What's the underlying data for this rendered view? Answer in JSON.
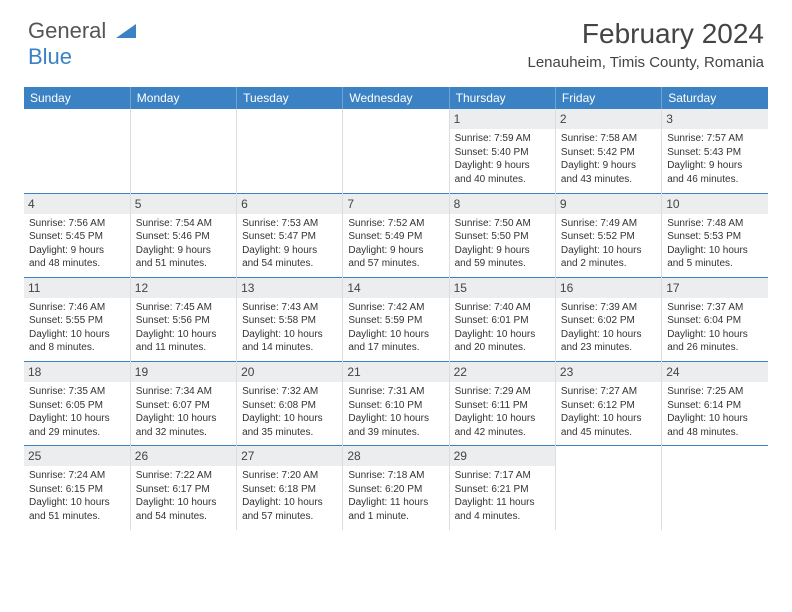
{
  "logo": {
    "line1": "General",
    "line2": "Blue"
  },
  "title": "February 2024",
  "location": "Lenauheim, Timis County, Romania",
  "colors": {
    "header_bg": "#3b82c4",
    "header_text": "#ffffff",
    "day_label_bg": "#ecedee",
    "cell_border": "#3b82c4"
  },
  "day_headers": [
    "Sunday",
    "Monday",
    "Tuesday",
    "Wednesday",
    "Thursday",
    "Friday",
    "Saturday"
  ],
  "weeks": [
    [
      null,
      null,
      null,
      null,
      {
        "n": "1",
        "sr": "Sunrise: 7:59 AM",
        "ss": "Sunset: 5:40 PM",
        "d1": "Daylight: 9 hours",
        "d2": "and 40 minutes."
      },
      {
        "n": "2",
        "sr": "Sunrise: 7:58 AM",
        "ss": "Sunset: 5:42 PM",
        "d1": "Daylight: 9 hours",
        "d2": "and 43 minutes."
      },
      {
        "n": "3",
        "sr": "Sunrise: 7:57 AM",
        "ss": "Sunset: 5:43 PM",
        "d1": "Daylight: 9 hours",
        "d2": "and 46 minutes."
      }
    ],
    [
      {
        "n": "4",
        "sr": "Sunrise: 7:56 AM",
        "ss": "Sunset: 5:45 PM",
        "d1": "Daylight: 9 hours",
        "d2": "and 48 minutes."
      },
      {
        "n": "5",
        "sr": "Sunrise: 7:54 AM",
        "ss": "Sunset: 5:46 PM",
        "d1": "Daylight: 9 hours",
        "d2": "and 51 minutes."
      },
      {
        "n": "6",
        "sr": "Sunrise: 7:53 AM",
        "ss": "Sunset: 5:47 PM",
        "d1": "Daylight: 9 hours",
        "d2": "and 54 minutes."
      },
      {
        "n": "7",
        "sr": "Sunrise: 7:52 AM",
        "ss": "Sunset: 5:49 PM",
        "d1": "Daylight: 9 hours",
        "d2": "and 57 minutes."
      },
      {
        "n": "8",
        "sr": "Sunrise: 7:50 AM",
        "ss": "Sunset: 5:50 PM",
        "d1": "Daylight: 9 hours",
        "d2": "and 59 minutes."
      },
      {
        "n": "9",
        "sr": "Sunrise: 7:49 AM",
        "ss": "Sunset: 5:52 PM",
        "d1": "Daylight: 10 hours",
        "d2": "and 2 minutes."
      },
      {
        "n": "10",
        "sr": "Sunrise: 7:48 AM",
        "ss": "Sunset: 5:53 PM",
        "d1": "Daylight: 10 hours",
        "d2": "and 5 minutes."
      }
    ],
    [
      {
        "n": "11",
        "sr": "Sunrise: 7:46 AM",
        "ss": "Sunset: 5:55 PM",
        "d1": "Daylight: 10 hours",
        "d2": "and 8 minutes."
      },
      {
        "n": "12",
        "sr": "Sunrise: 7:45 AM",
        "ss": "Sunset: 5:56 PM",
        "d1": "Daylight: 10 hours",
        "d2": "and 11 minutes."
      },
      {
        "n": "13",
        "sr": "Sunrise: 7:43 AM",
        "ss": "Sunset: 5:58 PM",
        "d1": "Daylight: 10 hours",
        "d2": "and 14 minutes."
      },
      {
        "n": "14",
        "sr": "Sunrise: 7:42 AM",
        "ss": "Sunset: 5:59 PM",
        "d1": "Daylight: 10 hours",
        "d2": "and 17 minutes."
      },
      {
        "n": "15",
        "sr": "Sunrise: 7:40 AM",
        "ss": "Sunset: 6:01 PM",
        "d1": "Daylight: 10 hours",
        "d2": "and 20 minutes."
      },
      {
        "n": "16",
        "sr": "Sunrise: 7:39 AM",
        "ss": "Sunset: 6:02 PM",
        "d1": "Daylight: 10 hours",
        "d2": "and 23 minutes."
      },
      {
        "n": "17",
        "sr": "Sunrise: 7:37 AM",
        "ss": "Sunset: 6:04 PM",
        "d1": "Daylight: 10 hours",
        "d2": "and 26 minutes."
      }
    ],
    [
      {
        "n": "18",
        "sr": "Sunrise: 7:35 AM",
        "ss": "Sunset: 6:05 PM",
        "d1": "Daylight: 10 hours",
        "d2": "and 29 minutes."
      },
      {
        "n": "19",
        "sr": "Sunrise: 7:34 AM",
        "ss": "Sunset: 6:07 PM",
        "d1": "Daylight: 10 hours",
        "d2": "and 32 minutes."
      },
      {
        "n": "20",
        "sr": "Sunrise: 7:32 AM",
        "ss": "Sunset: 6:08 PM",
        "d1": "Daylight: 10 hours",
        "d2": "and 35 minutes."
      },
      {
        "n": "21",
        "sr": "Sunrise: 7:31 AM",
        "ss": "Sunset: 6:10 PM",
        "d1": "Daylight: 10 hours",
        "d2": "and 39 minutes."
      },
      {
        "n": "22",
        "sr": "Sunrise: 7:29 AM",
        "ss": "Sunset: 6:11 PM",
        "d1": "Daylight: 10 hours",
        "d2": "and 42 minutes."
      },
      {
        "n": "23",
        "sr": "Sunrise: 7:27 AM",
        "ss": "Sunset: 6:12 PM",
        "d1": "Daylight: 10 hours",
        "d2": "and 45 minutes."
      },
      {
        "n": "24",
        "sr": "Sunrise: 7:25 AM",
        "ss": "Sunset: 6:14 PM",
        "d1": "Daylight: 10 hours",
        "d2": "and 48 minutes."
      }
    ],
    [
      {
        "n": "25",
        "sr": "Sunrise: 7:24 AM",
        "ss": "Sunset: 6:15 PM",
        "d1": "Daylight: 10 hours",
        "d2": "and 51 minutes."
      },
      {
        "n": "26",
        "sr": "Sunrise: 7:22 AM",
        "ss": "Sunset: 6:17 PM",
        "d1": "Daylight: 10 hours",
        "d2": "and 54 minutes."
      },
      {
        "n": "27",
        "sr": "Sunrise: 7:20 AM",
        "ss": "Sunset: 6:18 PM",
        "d1": "Daylight: 10 hours",
        "d2": "and 57 minutes."
      },
      {
        "n": "28",
        "sr": "Sunrise: 7:18 AM",
        "ss": "Sunset: 6:20 PM",
        "d1": "Daylight: 11 hours",
        "d2": "and 1 minute."
      },
      {
        "n": "29",
        "sr": "Sunrise: 7:17 AM",
        "ss": "Sunset: 6:21 PM",
        "d1": "Daylight: 11 hours",
        "d2": "and 4 minutes."
      },
      null,
      null
    ]
  ]
}
